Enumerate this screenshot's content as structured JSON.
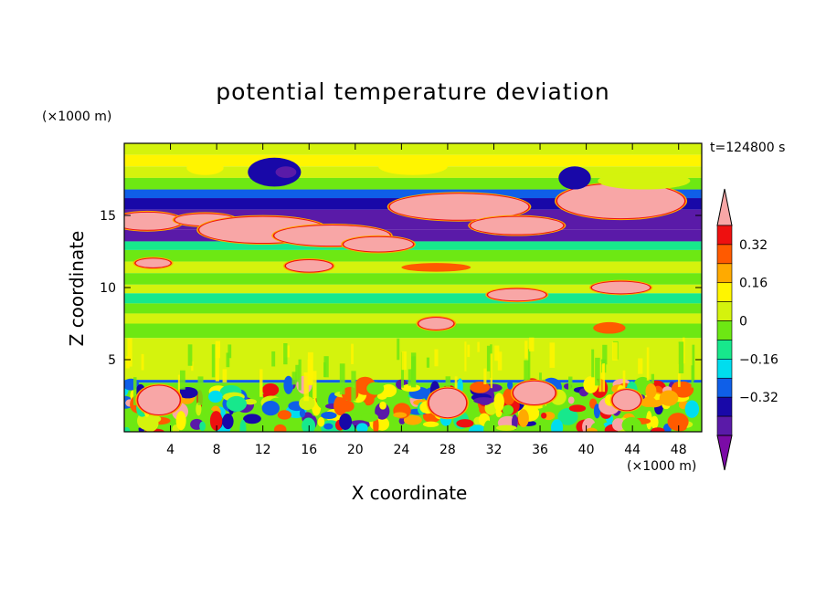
{
  "chart_data": {
    "type": "heatmap",
    "title": "potential temperature deviation",
    "xlabel": "X coordinate",
    "ylabel": "Z coordinate",
    "x_unit": "(×1000 m)",
    "y_unit": "(×1000 m)",
    "time_label": "t=124800 s",
    "xlim": [
      0,
      50
    ],
    "ylim": [
      0,
      20
    ],
    "x_ticks": [
      4,
      8,
      12,
      16,
      20,
      24,
      28,
      32,
      36,
      40,
      44,
      48
    ],
    "y_ticks": [
      5,
      10,
      15
    ],
    "colorbar": {
      "levels": [
        -0.48,
        -0.4,
        -0.32,
        -0.24,
        -0.16,
        -0.08,
        0,
        0.08,
        0.16,
        0.24,
        0.32,
        0.4
      ],
      "colors": [
        "#7b0ba6",
        "#5a1aa8",
        "#1808a8",
        "#0f5fe8",
        "#00ddee",
        "#17e88c",
        "#6de813",
        "#d4f30d",
        "#fff500",
        "#ffaa00",
        "#ff5a00",
        "#ee1010",
        "#f8a6a6"
      ],
      "tick_labels": [
        "0.32",
        "0.16",
        "0",
        "−0.16",
        "−0.32"
      ],
      "tick_values": [
        0.32,
        0.16,
        0,
        -0.16,
        -0.32
      ]
    },
    "bands": [
      {
        "z": [
          19.2,
          20
        ],
        "value": 0.04
      },
      {
        "z": [
          18.4,
          19.2
        ],
        "value": 0.12
      },
      {
        "z": [
          17.6,
          18.4
        ],
        "value": 0.04
      },
      {
        "z": [
          16.8,
          17.6
        ],
        "value": -0.04
      },
      {
        "z": [
          16.2,
          16.8
        ],
        "value": -0.28
      },
      {
        "z": [
          15.4,
          16.2
        ],
        "value": -0.4
      },
      {
        "z": [
          14.0,
          15.4
        ],
        "value": -0.44
      },
      {
        "z": [
          13.2,
          14.0
        ],
        "value": -0.44
      },
      {
        "z": [
          12.6,
          13.2
        ],
        "value": -0.12
      },
      {
        "z": [
          11.8,
          12.6
        ],
        "value": -0.04
      },
      {
        "z": [
          11.0,
          11.8
        ],
        "value": 0.04
      },
      {
        "z": [
          10.2,
          11.0
        ],
        "value": -0.04
      },
      {
        "z": [
          9.6,
          10.2
        ],
        "value": 0.04
      },
      {
        "z": [
          8.9,
          9.6
        ],
        "value": -0.12
      },
      {
        "z": [
          8.2,
          8.9
        ],
        "value": -0.04
      },
      {
        "z": [
          7.5,
          8.2
        ],
        "value": 0.04
      },
      {
        "z": [
          6.5,
          7.5
        ],
        "value": -0.04
      },
      {
        "z": [
          3.6,
          6.5
        ],
        "value": 0.04
      },
      {
        "z": [
          3.4,
          3.6
        ],
        "value": -0.28
      },
      {
        "z": [
          0,
          3.4
        ],
        "value": -0.04
      }
    ],
    "blobs": [
      {
        "x": 2,
        "z": 14.6,
        "rx": 3,
        "rz": 0.6,
        "value": 0.45
      },
      {
        "x": 7,
        "z": 14.7,
        "rx": 2.6,
        "rz": 0.4,
        "value": 0.45
      },
      {
        "x": 12,
        "z": 14.0,
        "rx": 5.5,
        "rz": 0.9,
        "value": 0.45
      },
      {
        "x": 18,
        "z": 13.6,
        "rx": 5,
        "rz": 0.7,
        "value": 0.45
      },
      {
        "x": 22,
        "z": 13.0,
        "rx": 3,
        "rz": 0.5,
        "value": 0.45
      },
      {
        "x": 29,
        "z": 15.6,
        "rx": 6,
        "rz": 0.9,
        "value": 0.45
      },
      {
        "x": 43,
        "z": 16.0,
        "rx": 5.5,
        "rz": 1.2,
        "value": 0.45
      },
      {
        "x": 34,
        "z": 14.3,
        "rx": 4,
        "rz": 0.6,
        "value": 0.45
      },
      {
        "x": 13,
        "z": 18.0,
        "rx": 2.3,
        "rz": 1.0,
        "value": -0.36
      },
      {
        "x": 14,
        "z": 18.0,
        "rx": 0.9,
        "rz": 0.4,
        "value": -0.44
      },
      {
        "x": 39,
        "z": 17.6,
        "rx": 1.4,
        "rz": 0.8,
        "value": -0.36
      },
      {
        "x": 7,
        "z": 18.3,
        "rx": 1.6,
        "rz": 0.5,
        "value": 0.12
      },
      {
        "x": 25,
        "z": 18.4,
        "rx": 3,
        "rz": 0.6,
        "value": 0.12
      },
      {
        "x": 45,
        "z": 17.4,
        "rx": 4,
        "rz": 0.6,
        "value": 0.04
      },
      {
        "x": 16,
        "z": 11.5,
        "rx": 2,
        "rz": 0.4,
        "value": 0.45
      },
      {
        "x": 27,
        "z": 11.4,
        "rx": 3,
        "rz": 0.3,
        "value": 0.3
      },
      {
        "x": 34,
        "z": 9.5,
        "rx": 2.5,
        "rz": 0.4,
        "value": 0.45
      },
      {
        "x": 43,
        "z": 10.0,
        "rx": 2.5,
        "rz": 0.4,
        "value": 0.45
      },
      {
        "x": 27,
        "z": 7.5,
        "rx": 1.5,
        "rz": 0.4,
        "value": 0.45
      },
      {
        "x": 42,
        "z": 7.2,
        "rx": 1.4,
        "rz": 0.4,
        "value": 0.3
      },
      {
        "x": 2.5,
        "z": 11.7,
        "rx": 1.5,
        "rz": 0.3,
        "value": 0.45
      },
      {
        "x": 3,
        "z": 2.2,
        "rx": 1.8,
        "rz": 1.0,
        "value": 0.45
      },
      {
        "x": 28,
        "z": 2.0,
        "rx": 1.6,
        "rz": 1.0,
        "value": 0.45
      },
      {
        "x": 35.5,
        "z": 2.7,
        "rx": 1.8,
        "rz": 0.8,
        "value": 0.45
      },
      {
        "x": 43.5,
        "z": 2.2,
        "rx": 1.2,
        "rz": 0.7,
        "value": 0.45
      }
    ]
  }
}
